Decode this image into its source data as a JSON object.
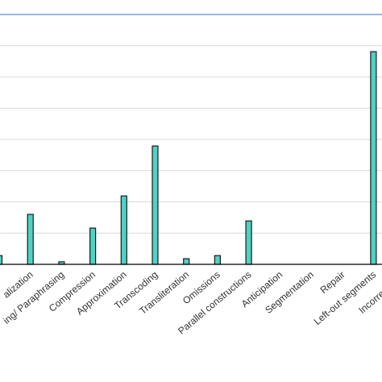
{
  "chart_data": {
    "type": "bar",
    "categories": [
      null,
      "alization",
      "ing/ Paraphrasing",
      "Compression",
      "Approximation",
      "Transcoding",
      "Transliteration",
      "Omissions",
      "Parallel constructions",
      "Anticipation",
      "Segmentation",
      "Repair",
      "Left-out segments",
      "Incorrect  rend"
    ],
    "values": [
      0.28,
      1.6,
      0.08,
      1.16,
      2.19,
      3.79,
      0.18,
      0.28,
      1.39,
      0,
      0,
      0,
      6.81,
      null
    ],
    "color": "#4fd1c5",
    "ylim": [
      0,
      8
    ],
    "yticks": [
      0,
      1,
      2,
      3,
      4,
      5,
      6,
      7
    ],
    "grid": true
  }
}
